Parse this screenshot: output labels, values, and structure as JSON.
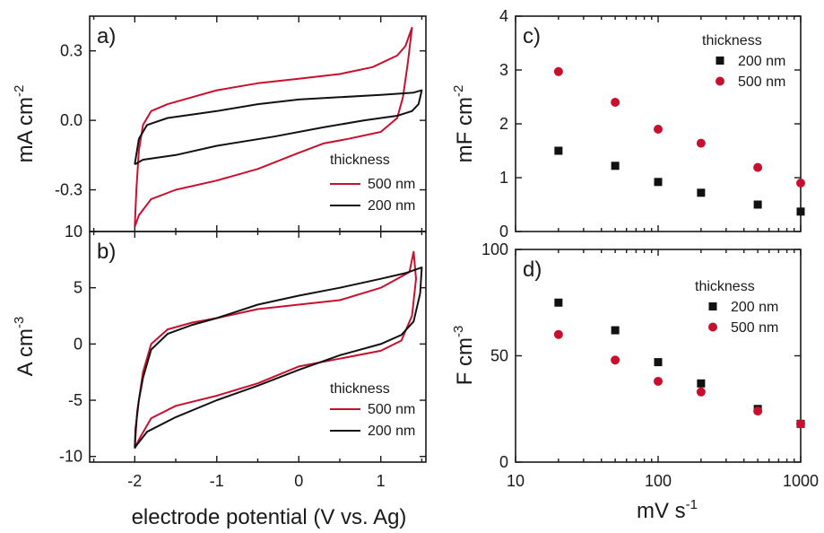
{
  "colors": {
    "red": "#c8102e",
    "black": "#111111"
  },
  "chart_data": [
    {
      "id": "a",
      "type": "line",
      "panel_label": "a)",
      "xlabel": "electrode potential (V vs. Ag)",
      "ylabel": "mA cm",
      "ylabel_sup": "-2",
      "xlim": [
        -2.55,
        1.55
      ],
      "ylim": [
        -0.48,
        0.45
      ],
      "xticks": [
        -2,
        -1,
        0,
        1
      ],
      "yticks": [
        -0.3,
        0.0,
        0.3
      ],
      "ytick_labels": [
        "-0.3",
        "0.0",
        "0.3"
      ],
      "show_xtick_labels": false,
      "legend": {
        "title": "thickness",
        "position": "lower-right",
        "entries": [
          "500 nm",
          "200 nm"
        ]
      },
      "series": [
        {
          "name": "500 nm",
          "color": "#c8102e",
          "points": [
            [
              -2.0,
              -0.46
            ],
            [
              -1.98,
              -0.3
            ],
            [
              -1.95,
              -0.13
            ],
            [
              -1.9,
              -0.02
            ],
            [
              -1.8,
              0.04
            ],
            [
              -1.6,
              0.07
            ],
            [
              -1.3,
              0.1
            ],
            [
              -1.0,
              0.13
            ],
            [
              -0.5,
              0.16
            ],
            [
              0.0,
              0.18
            ],
            [
              0.5,
              0.2
            ],
            [
              0.9,
              0.23
            ],
            [
              1.2,
              0.28
            ],
            [
              1.3,
              0.32
            ],
            [
              1.38,
              0.4
            ],
            [
              1.33,
              0.25
            ],
            [
              1.27,
              0.1
            ],
            [
              1.2,
              0.01
            ],
            [
              1.0,
              -0.05
            ],
            [
              0.6,
              -0.08
            ],
            [
              0.3,
              -0.1
            ],
            [
              0.0,
              -0.14
            ],
            [
              -0.5,
              -0.21
            ],
            [
              -1.0,
              -0.26
            ],
            [
              -1.5,
              -0.3
            ],
            [
              -1.8,
              -0.34
            ],
            [
              -1.95,
              -0.41
            ],
            [
              -2.0,
              -0.46
            ]
          ]
        },
        {
          "name": "200 nm",
          "color": "#111111",
          "points": [
            [
              -2.0,
              -0.19
            ],
            [
              -1.95,
              -0.08
            ],
            [
              -1.85,
              -0.02
            ],
            [
              -1.6,
              0.01
            ],
            [
              -1.0,
              0.04
            ],
            [
              -0.5,
              0.07
            ],
            [
              0.0,
              0.09
            ],
            [
              0.5,
              0.1
            ],
            [
              1.0,
              0.11
            ],
            [
              1.4,
              0.12
            ],
            [
              1.5,
              0.13
            ],
            [
              1.46,
              0.07
            ],
            [
              1.38,
              0.04
            ],
            [
              1.2,
              0.02
            ],
            [
              0.8,
              0.0
            ],
            [
              0.3,
              -0.03
            ],
            [
              -0.3,
              -0.07
            ],
            [
              -1.0,
              -0.11
            ],
            [
              -1.5,
              -0.15
            ],
            [
              -1.9,
              -0.17
            ],
            [
              -2.0,
              -0.19
            ]
          ]
        }
      ]
    },
    {
      "id": "b",
      "type": "line",
      "panel_label": "b)",
      "xlabel": "electrode potential (V vs. Ag)",
      "ylabel": "A cm",
      "ylabel_sup": "-3",
      "xlim": [
        -2.55,
        1.55
      ],
      "ylim": [
        -10.5,
        10
      ],
      "xticks": [
        -2,
        -1,
        0,
        1
      ],
      "xtick_labels": [
        "-2",
        "-1",
        "0",
        "1"
      ],
      "yticks": [
        -10,
        -5,
        0,
        5,
        10
      ],
      "ytick_labels": [
        "-10",
        "-5",
        "0",
        "5",
        "10"
      ],
      "show_xtick_labels": true,
      "legend": {
        "title": "thickness",
        "position": "lower-right",
        "entries": [
          "500 nm",
          "200 nm"
        ]
      },
      "series": [
        {
          "name": "500 nm",
          "color": "#c8102e",
          "points": [
            [
              -2.0,
              -9.3
            ],
            [
              -1.97,
              -6.0
            ],
            [
              -1.9,
              -2.5
            ],
            [
              -1.8,
              0.0
            ],
            [
              -1.6,
              1.3
            ],
            [
              -1.3,
              1.9
            ],
            [
              -1.0,
              2.3
            ],
            [
              -0.5,
              3.1
            ],
            [
              0.0,
              3.5
            ],
            [
              0.5,
              3.9
            ],
            [
              1.0,
              5.0
            ],
            [
              1.2,
              5.8
            ],
            [
              1.35,
              6.4
            ],
            [
              1.4,
              8.2
            ],
            [
              1.43,
              5.8
            ],
            [
              1.38,
              2.5
            ],
            [
              1.25,
              0.3
            ],
            [
              1.0,
              -0.6
            ],
            [
              0.5,
              -1.3
            ],
            [
              0.0,
              -2.0
            ],
            [
              -0.5,
              -3.5
            ],
            [
              -1.0,
              -4.6
            ],
            [
              -1.5,
              -5.5
            ],
            [
              -1.8,
              -6.6
            ],
            [
              -1.95,
              -8.5
            ],
            [
              -2.0,
              -9.3
            ]
          ]
        },
        {
          "name": "200 nm",
          "color": "#111111",
          "points": [
            [
              -2.0,
              -9.2
            ],
            [
              -1.99,
              -7.5
            ],
            [
              -1.95,
              -5.0
            ],
            [
              -1.9,
              -3.0
            ],
            [
              -1.8,
              -0.5
            ],
            [
              -1.6,
              0.9
            ],
            [
              -1.3,
              1.7
            ],
            [
              -1.0,
              2.3
            ],
            [
              -0.5,
              3.5
            ],
            [
              0.0,
              4.3
            ],
            [
              0.5,
              5.0
            ],
            [
              1.0,
              5.8
            ],
            [
              1.3,
              6.3
            ],
            [
              1.5,
              6.8
            ],
            [
              1.48,
              4.5
            ],
            [
              1.4,
              2.0
            ],
            [
              1.25,
              0.8
            ],
            [
              1.0,
              0.0
            ],
            [
              0.5,
              -1.0
            ],
            [
              0.0,
              -2.3
            ],
            [
              -0.5,
              -3.7
            ],
            [
              -1.0,
              -5.0
            ],
            [
              -1.5,
              -6.5
            ],
            [
              -1.85,
              -7.8
            ],
            [
              -2.0,
              -9.2
            ]
          ]
        }
      ]
    },
    {
      "id": "c",
      "type": "scatter",
      "panel_label": "c)",
      "xscale": "log",
      "xlim": [
        10,
        1000
      ],
      "ylim": [
        0,
        4
      ],
      "xticks": [
        10,
        100,
        1000
      ],
      "yticks": [
        0,
        1,
        2,
        3,
        4
      ],
      "ytick_labels": [
        "0",
        "1",
        "2",
        "3",
        "4"
      ],
      "show_xtick_labels": false,
      "ylabel": "mF cm",
      "ylabel_sup": "-2",
      "legend": {
        "title": "thickness",
        "position": "top-right",
        "entries": [
          "200 nm",
          "500 nm"
        ]
      },
      "series": [
        {
          "name": "200 nm",
          "marker": "square",
          "color": "#111111",
          "x": [
            20,
            50,
            100,
            200,
            500,
            1000
          ],
          "y": [
            1.5,
            1.22,
            0.92,
            0.72,
            0.5,
            0.37
          ]
        },
        {
          "name": "500 nm",
          "marker": "circle",
          "color": "#c8102e",
          "x": [
            20,
            50,
            100,
            200,
            500,
            1000
          ],
          "y": [
            2.97,
            2.4,
            1.9,
            1.64,
            1.19,
            0.9
          ]
        }
      ]
    },
    {
      "id": "d",
      "type": "scatter",
      "panel_label": "d)",
      "xscale": "log",
      "xlim": [
        10,
        1000
      ],
      "ylim": [
        0,
        100
      ],
      "xticks": [
        10,
        100,
        1000
      ],
      "xtick_labels": [
        "10",
        "100",
        "1000"
      ],
      "yticks": [
        0,
        50,
        100
      ],
      "ytick_labels": [
        "0",
        "50",
        "100"
      ],
      "show_xtick_labels": true,
      "xlabel": "mV s",
      "xlabel_sup": "-1",
      "ylabel": "F cm",
      "ylabel_sup": "-3",
      "legend": {
        "title": "thickness",
        "position": "top-right",
        "entries": [
          "200 nm",
          "500 nm"
        ]
      },
      "series": [
        {
          "name": "200 nm",
          "marker": "square",
          "color": "#111111",
          "x": [
            20,
            50,
            100,
            200,
            500,
            1000
          ],
          "y": [
            75,
            62,
            47,
            37,
            25,
            18
          ]
        },
        {
          "name": "500 nm",
          "marker": "circle",
          "color": "#c8102e",
          "x": [
            20,
            50,
            100,
            200,
            500,
            1000
          ],
          "y": [
            60,
            48,
            38,
            33,
            24,
            18
          ]
        }
      ]
    }
  ]
}
